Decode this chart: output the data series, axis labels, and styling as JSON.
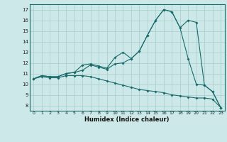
{
  "title": "",
  "xlabel": "Humidex (Indice chaleur)",
  "xlim": [
    -0.5,
    23.5
  ],
  "ylim": [
    7.5,
    17.5
  ],
  "yticks": [
    8,
    9,
    10,
    11,
    12,
    13,
    14,
    15,
    16,
    17
  ],
  "xticks": [
    0,
    1,
    2,
    3,
    4,
    5,
    6,
    7,
    8,
    9,
    10,
    11,
    12,
    13,
    14,
    15,
    16,
    17,
    18,
    19,
    20,
    21,
    22,
    23
  ],
  "bg_color": "#cce8e8",
  "grid_color": "#aacccc",
  "line_color": "#1a6b6b",
  "line1_x": [
    0,
    1,
    2,
    3,
    4,
    5,
    6,
    7,
    8,
    9,
    10,
    11,
    12,
    13,
    14,
    15,
    16,
    17,
    18,
    19,
    20,
    21,
    22,
    23
  ],
  "line1_y": [
    10.5,
    10.8,
    10.7,
    10.7,
    11.0,
    11.1,
    11.8,
    11.9,
    11.7,
    11.5,
    12.5,
    13.0,
    12.4,
    13.1,
    14.6,
    16.0,
    17.0,
    16.8,
    15.3,
    16.0,
    15.8,
    9.9,
    9.3,
    7.8
  ],
  "line2_x": [
    0,
    1,
    2,
    3,
    4,
    5,
    6,
    7,
    8,
    9,
    10,
    11,
    12,
    13,
    14,
    15,
    16,
    17,
    18,
    19,
    20,
    21,
    22,
    23
  ],
  "line2_y": [
    10.5,
    10.8,
    10.7,
    10.7,
    11.0,
    11.1,
    11.3,
    11.8,
    11.6,
    11.4,
    11.9,
    12.0,
    12.4,
    13.1,
    14.6,
    16.0,
    17.0,
    16.8,
    15.3,
    12.4,
    10.0,
    9.9,
    9.3,
    7.8
  ],
  "line3_x": [
    0,
    1,
    2,
    3,
    4,
    5,
    6,
    7,
    8,
    9,
    10,
    11,
    12,
    13,
    14,
    15,
    16,
    17,
    18,
    19,
    20,
    21,
    22,
    23
  ],
  "line3_y": [
    10.5,
    10.7,
    10.6,
    10.6,
    10.8,
    10.8,
    10.8,
    10.7,
    10.5,
    10.3,
    10.1,
    9.9,
    9.7,
    9.5,
    9.4,
    9.3,
    9.2,
    9.0,
    8.9,
    8.8,
    8.7,
    8.7,
    8.6,
    7.8
  ]
}
